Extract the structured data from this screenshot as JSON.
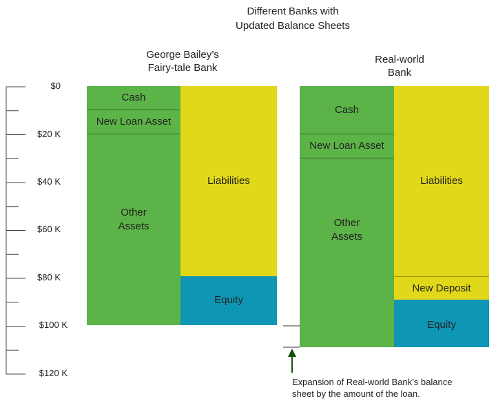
{
  "title": {
    "line1": "Different Banks with",
    "line2": "Updated Balance Sheets"
  },
  "axis": {
    "ticks": [
      "$0",
      "$20 K",
      "$40 K",
      "$60 K",
      "$80 K",
      "$100 K",
      "$120 K"
    ]
  },
  "bank1": {
    "title_line1": "George Bailey’s",
    "title_line2": "Fairy-tale Bank",
    "assets": [
      {
        "label": "Cash",
        "value": 10000
      },
      {
        "label": "New Loan Asset",
        "value": 10000
      },
      {
        "label_line1": "Other",
        "label_line2": "Assets",
        "value": 80000
      }
    ],
    "liabilities": {
      "label": "Liabilities",
      "value": 80000
    },
    "equity": {
      "label": "Equity",
      "value": 20000
    }
  },
  "bank2": {
    "title_line1": "Real-world",
    "title_line2": "Bank",
    "assets": [
      {
        "label": "Cash",
        "value": 20000
      },
      {
        "label": "New Loan Asset",
        "value": 10000
      },
      {
        "label_line1": "Other",
        "label_line2": "Assets",
        "value": 80000
      }
    ],
    "liabilities": {
      "label": "Liabilities",
      "value": 80000
    },
    "new_deposit": {
      "label": "New Deposit",
      "value": 10000
    },
    "equity": {
      "label": "Equity",
      "value": 20000
    }
  },
  "annotation": {
    "line1": "Expansion of Real-world Bank’s balance",
    "line2": "sheet by the amount of the loan."
  },
  "colors": {
    "assets": "#5cb347",
    "liabilities": "#e2d81a",
    "equity": "#0f96b4"
  }
}
